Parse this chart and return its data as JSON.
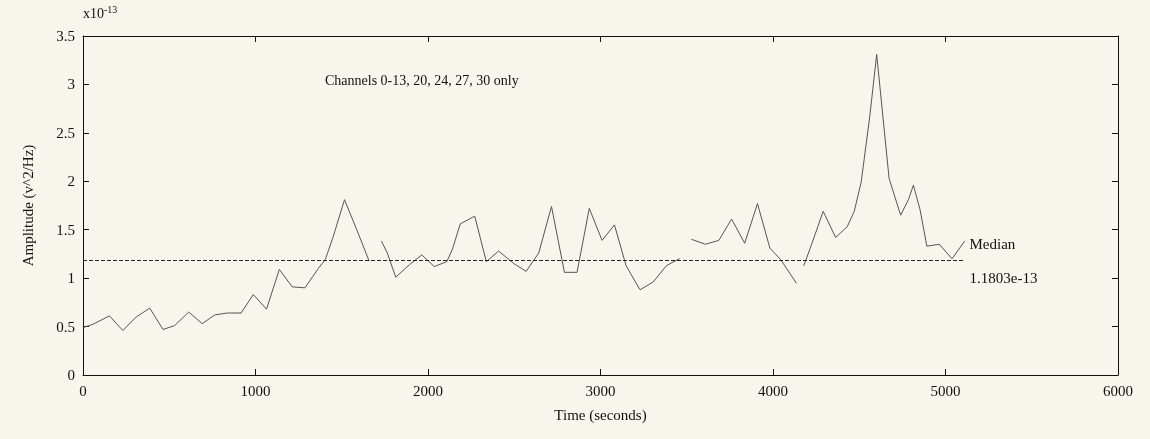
{
  "chart_data": {
    "type": "line",
    "xlabel": "Time (seconds)",
    "ylabel": "Amplitude (v^2/Hz)",
    "annotations": [
      "x10$^{-13}$",
      "Channels 0-13, 20, 24, 27, 30 only"
    ],
    "x": [
      0,
      53,
      153,
      231,
      309,
      387,
      464,
      531,
      613,
      691,
      764,
      836,
      916,
      987,
      1064,
      1138,
      1213,
      1287,
      1364,
      1404,
      1449,
      1516,
      1587,
      1658,
      1700,
      1731,
      1764,
      1813,
      1893,
      1964,
      2036,
      2109,
      2142,
      2187,
      2271,
      2338,
      2409,
      2498,
      2569,
      2642,
      2716,
      2791,
      2864,
      2935,
      3009,
      3081,
      3148,
      3229,
      3305,
      3383,
      3457,
      3490,
      3529,
      3608,
      3686,
      3760,
      3836,
      3910,
      3982,
      4045,
      4135,
      4160,
      4179,
      4224,
      4291,
      4363,
      4430,
      4471,
      4511,
      4561,
      4601,
      4673,
      4740,
      4785,
      4814,
      4852,
      4892,
      4964,
      5038,
      5110
    ],
    "series": [
      {
        "color": "#555555",
        "values": [
          0.49,
          0.52,
          0.61,
          0.46,
          0.6,
          0.69,
          0.47,
          0.51,
          0.65,
          0.53,
          0.62,
          0.64,
          0.64,
          0.83,
          0.68,
          1.09,
          0.91,
          0.9,
          1.1,
          1.19,
          1.42,
          1.81,
          1.5,
          1.18,
          null,
          1.38,
          1.26,
          1.01,
          1.14,
          1.24,
          1.12,
          1.17,
          1.3,
          1.56,
          1.64,
          1.17,
          1.28,
          1.15,
          1.07,
          1.26,
          1.74,
          1.06,
          1.06,
          1.72,
          1.39,
          1.55,
          1.13,
          0.88,
          0.96,
          1.13,
          1.2,
          null,
          1.4,
          1.35,
          1.39,
          1.61,
          1.36,
          1.77,
          1.31,
          1.19,
          0.95,
          null,
          1.13,
          1.35,
          1.69,
          1.42,
          1.53,
          1.69,
          1.99,
          2.67,
          3.31,
          2.03,
          1.65,
          1.81,
          1.96,
          1.71,
          1.33,
          1.35,
          1.2,
          1.38
        ]
      }
    ],
    "xlim": [
      0,
      6000
    ],
    "xticks": [
      0,
      1000,
      2000,
      3000,
      4000,
      5000,
      6000
    ],
    "ylim": [
      0,
      3.5
    ],
    "yticks": [
      0,
      0.5,
      1,
      1.5,
      2,
      2.5,
      3,
      3.5
    ],
    "ref_lines": [
      {
        "axis": "y",
        "value": 1.1803,
        "label": "Median\n1.1803e-13",
        "color": "#222222",
        "line_style": "dashed"
      }
    ],
    "grid": false,
    "marker": "none",
    "line_style": "solid"
  }
}
